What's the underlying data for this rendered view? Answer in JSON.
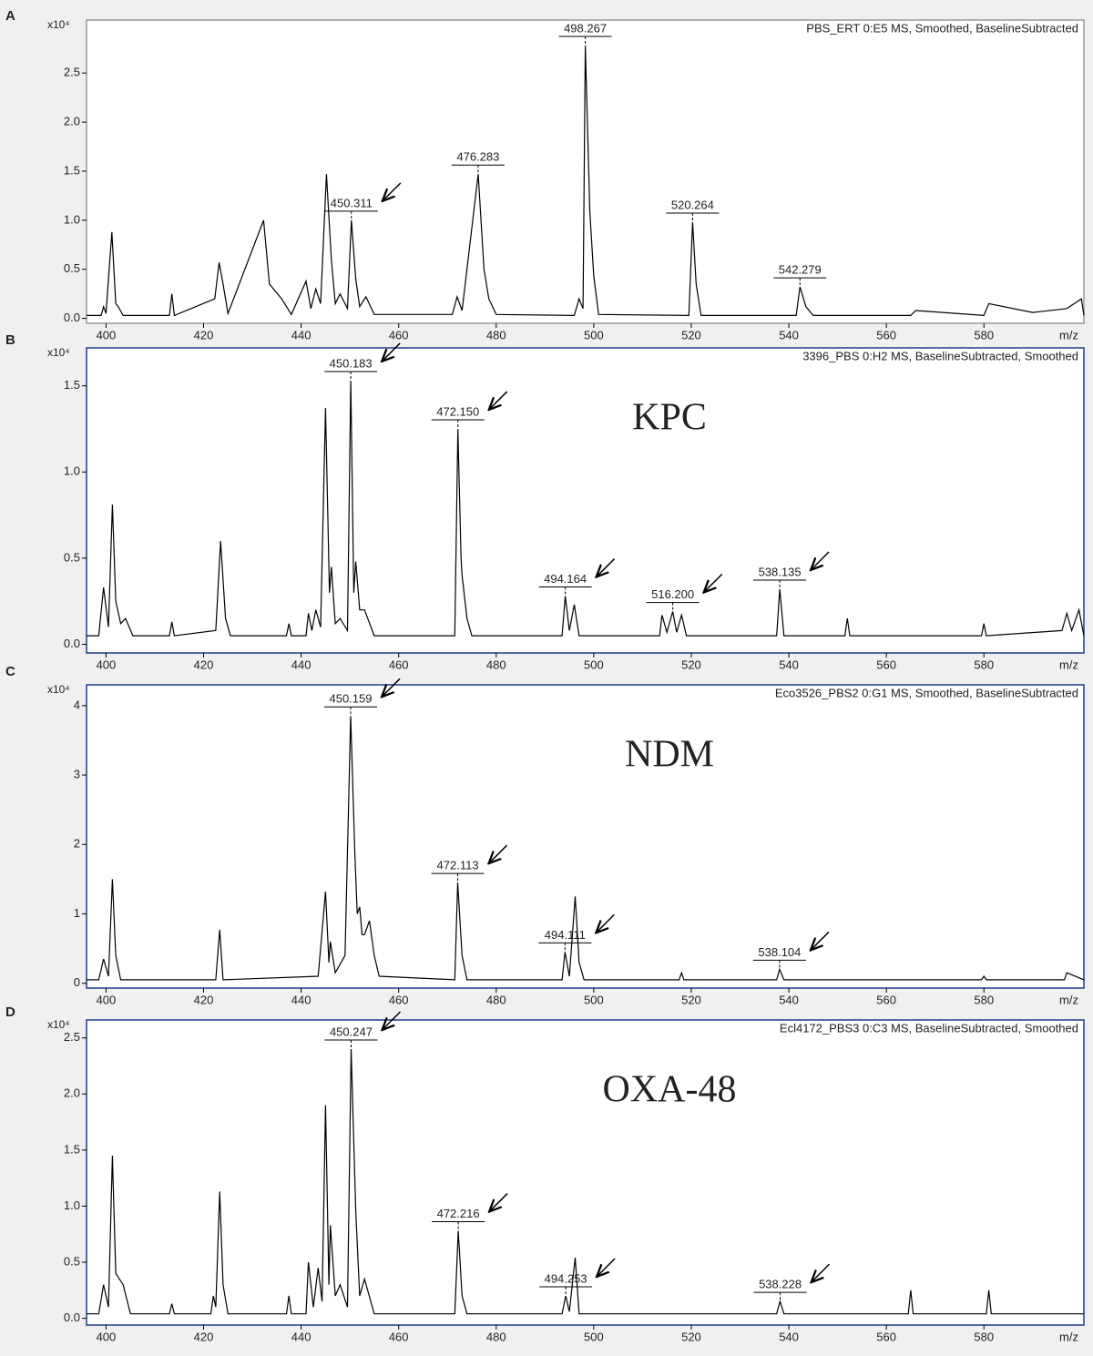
{
  "chart_data": [
    {
      "type": "line",
      "panel": "A",
      "title": "PBS_ERT 0:E5 MS, Smoothed, BaselineSubtracted",
      "y_multiplier": "x10⁴",
      "xlabel": "m/z",
      "color": "#000000",
      "frame_color": "#999999",
      "x": [
        396,
        399,
        399.5,
        400,
        401.2,
        402,
        402.5,
        403.5,
        413,
        413.5,
        414,
        422.3,
        423.2,
        424,
        425,
        432.3,
        433.5,
        436,
        438,
        441,
        442,
        443,
        444,
        445.2,
        446.2,
        447,
        448,
        449.5,
        450.3,
        451.2,
        452,
        453.3,
        455,
        471,
        472,
        473,
        476.3,
        477.5,
        478.5,
        480,
        496,
        497,
        497.8,
        498.27,
        499.2,
        500,
        501,
        519.5,
        520.26,
        521,
        522,
        541.5,
        542.28,
        543.5,
        545,
        565,
        566,
        580,
        581,
        590,
        597,
        600,
        600.5
      ],
      "values": [
        0.03,
        0.03,
        0.12,
        0.05,
        0.88,
        0.15,
        0.12,
        0.03,
        0.03,
        0.25,
        0.03,
        0.2,
        0.57,
        0.35,
        0.05,
        1.0,
        0.35,
        0.2,
        0.04,
        0.38,
        0.1,
        0.3,
        0.15,
        1.47,
        0.6,
        0.15,
        0.25,
        0.1,
        1.0,
        0.4,
        0.12,
        0.22,
        0.04,
        0.04,
        0.22,
        0.08,
        1.47,
        0.5,
        0.2,
        0.04,
        0.03,
        0.2,
        0.1,
        2.78,
        1.08,
        0.43,
        0.04,
        0.03,
        0.98,
        0.35,
        0.03,
        0.03,
        0.32,
        0.12,
        0.03,
        0.03,
        0.08,
        0.03,
        0.15,
        0.06,
        0.1,
        0.2,
        0.03
      ],
      "xlim": [
        396,
        600.5
      ],
      "ylim": [
        -0.05,
        3.04
      ],
      "xticks": [
        400,
        420,
        440,
        460,
        480,
        500,
        520,
        540,
        560,
        580
      ],
      "yticks": [
        {
          "value": 0,
          "label": "0.0"
        },
        0.5,
        {
          "value": 1,
          "label": "1.0"
        },
        1.5,
        {
          "value": 2,
          "label": "2.0"
        },
        2.5
      ],
      "peak_labels": [
        {
          "x": 450.311,
          "y": 1.0,
          "arrow": true
        },
        {
          "x": 476.283,
          "y": 1.47,
          "arrow": false
        },
        {
          "x": 498.267,
          "y": 2.78,
          "arrow": false
        },
        {
          "x": 520.264,
          "y": 0.98,
          "arrow": false
        },
        {
          "x": 542.279,
          "y": 0.32,
          "arrow": false
        }
      ]
    },
    {
      "type": "line",
      "panel": "B",
      "title": "3396_PBS 0:H2 MS, BaselineSubtracted, Smoothed",
      "annotation": "KPC",
      "y_multiplier": "x10⁴",
      "xlabel": "m/z",
      "color": "#000000",
      "frame_color": "#1f3a8a",
      "x": [
        396,
        398.5,
        399.5,
        400.5,
        401.3,
        402,
        403,
        404,
        405.5,
        413,
        413.5,
        414,
        422.5,
        423.5,
        424.5,
        425.5,
        437,
        437.5,
        438,
        441,
        441.5,
        442.2,
        443,
        444,
        445,
        445.8,
        446.2,
        447,
        448,
        449.5,
        450.18,
        450.8,
        451.2,
        452,
        453,
        455,
        471.5,
        472.15,
        472.8,
        473,
        474,
        475,
        493.5,
        494.16,
        495,
        496,
        497,
        513.5,
        514,
        515,
        516.2,
        517,
        518,
        519,
        537.5,
        538.14,
        539,
        551.5,
        552,
        552.5,
        579.5,
        580,
        580.5,
        596,
        597,
        598,
        599.5,
        600.5
      ],
      "values": [
        0.05,
        0.05,
        0.33,
        0.1,
        0.81,
        0.25,
        0.12,
        0.15,
        0.05,
        0.05,
        0.13,
        0.05,
        0.08,
        0.6,
        0.15,
        0.05,
        0.05,
        0.12,
        0.05,
        0.05,
        0.18,
        0.08,
        0.2,
        0.1,
        1.37,
        0.3,
        0.45,
        0.12,
        0.15,
        0.08,
        1.53,
        0.3,
        0.48,
        0.2,
        0.2,
        0.05,
        0.05,
        1.25,
        0.5,
        0.4,
        0.15,
        0.05,
        0.05,
        0.28,
        0.08,
        0.23,
        0.05,
        0.05,
        0.17,
        0.07,
        0.19,
        0.07,
        0.17,
        0.05,
        0.05,
        0.32,
        0.05,
        0.05,
        0.15,
        0.05,
        0.05,
        0.12,
        0.05,
        0.08,
        0.18,
        0.08,
        0.2,
        0.05
      ],
      "xlim": [
        396,
        600.5
      ],
      "ylim": [
        -0.05,
        1.72
      ],
      "xticks": [
        400,
        420,
        440,
        460,
        480,
        500,
        520,
        540,
        560,
        580
      ],
      "yticks": [
        {
          "value": 0,
          "label": "0.0"
        },
        0.5,
        {
          "value": 1,
          "label": "1.0"
        },
        1.5
      ],
      "peak_labels": [
        {
          "x": 450.183,
          "y": 1.53,
          "arrow": true
        },
        {
          "x": 472.15,
          "y": 1.25,
          "arrow": true
        },
        {
          "x": 494.164,
          "y": 0.28,
          "arrow": true
        },
        {
          "x": 516.2,
          "y": 0.19,
          "arrow": true
        },
        {
          "x": 538.135,
          "y": 0.32,
          "arrow": true
        }
      ],
      "peak_label_texts": [
        "450.183",
        "472.150",
        "494.164",
        "516.200",
        "538.135"
      ]
    },
    {
      "type": "line",
      "panel": "C",
      "title": "Eco3526_PBS2 0:G1 MS, Smoothed, BaselineSubtracted",
      "annotation": "NDM",
      "y_multiplier": "x10⁴",
      "xlabel": "m/z",
      "color": "#000000",
      "frame_color": "#1f3a8a",
      "x": [
        396,
        398.5,
        399.5,
        400.5,
        401.3,
        402,
        403,
        422.5,
        423.3,
        424,
        443.5,
        445,
        445.7,
        446,
        447,
        449,
        450.16,
        451,
        451.5,
        452,
        452.5,
        453,
        454,
        455,
        456,
        471.5,
        472.11,
        473,
        474,
        493.5,
        494.11,
        495,
        496.2,
        497,
        498,
        517.5,
        518,
        518.5,
        537.5,
        538.1,
        539,
        579.5,
        580,
        580.5,
        596.5,
        597,
        600.5
      ],
      "values": [
        0.05,
        0.05,
        0.35,
        0.1,
        1.5,
        0.4,
        0.05,
        0.05,
        0.77,
        0.05,
        0.1,
        1.32,
        0.3,
        0.6,
        0.15,
        0.4,
        3.85,
        1.9,
        1.0,
        1.1,
        0.7,
        0.7,
        0.9,
        0.4,
        0.1,
        0.05,
        1.45,
        0.4,
        0.05,
        0.05,
        0.45,
        0.1,
        1.25,
        0.3,
        0.05,
        0.05,
        0.15,
        0.05,
        0.05,
        0.2,
        0.05,
        0.05,
        0.1,
        0.05,
        0.05,
        0.15,
        0.05
      ],
      "xlim": [
        396,
        600.5
      ],
      "ylim": [
        -0.07,
        4.3
      ],
      "xticks": [
        400,
        420,
        440,
        460,
        480,
        500,
        520,
        540,
        560,
        580
      ],
      "yticks": [
        0,
        1,
        2,
        3,
        4
      ],
      "peak_labels": [
        {
          "x": 450.159,
          "y": 3.85,
          "arrow": true
        },
        {
          "x": 472.113,
          "y": 1.45,
          "arrow": true
        },
        {
          "x": 494.111,
          "y": 0.45,
          "arrow": true
        },
        {
          "x": 538.104,
          "y": 0.2,
          "arrow": true
        }
      ]
    },
    {
      "type": "line",
      "panel": "D",
      "title": "Ecl4172_PBS3 0:C3 MS, BaselineSubtracted, Smoothed",
      "annotation": "OXA-48",
      "y_multiplier": "x10⁴",
      "xlabel": "m/z",
      "color": "#000000",
      "frame_color": "#1f3a8a",
      "x": [
        396,
        398.5,
        399.5,
        400.5,
        401.3,
        402,
        403.5,
        405,
        413,
        413.5,
        414,
        421.5,
        422,
        422.5,
        423.3,
        424,
        425,
        437,
        437.5,
        438,
        441,
        441.5,
        442.5,
        443.5,
        444.3,
        445,
        445.7,
        446,
        447,
        448,
        449.5,
        450.25,
        451.2,
        452,
        453,
        455,
        471.5,
        472.22,
        473,
        474,
        493.5,
        494.25,
        495,
        496.2,
        497,
        537.5,
        538.2,
        539,
        564.5,
        565,
        565.5,
        580.5,
        581,
        581.5,
        600.5
      ],
      "values": [
        0.04,
        0.04,
        0.3,
        0.1,
        1.45,
        0.4,
        0.3,
        0.04,
        0.04,
        0.13,
        0.04,
        0.04,
        0.2,
        0.1,
        1.13,
        0.3,
        0.04,
        0.04,
        0.2,
        0.04,
        0.04,
        0.5,
        0.1,
        0.45,
        0.15,
        1.9,
        0.3,
        0.83,
        0.2,
        0.3,
        0.1,
        2.4,
        0.95,
        0.2,
        0.35,
        0.04,
        0.04,
        0.78,
        0.2,
        0.04,
        0.04,
        0.2,
        0.06,
        0.54,
        0.04,
        0.04,
        0.15,
        0.04,
        0.04,
        0.25,
        0.04,
        0.04,
        0.25,
        0.04,
        0.04
      ],
      "xlim": [
        396,
        600.5
      ],
      "ylim": [
        -0.06,
        2.66
      ],
      "xticks": [
        400,
        420,
        440,
        460,
        480,
        500,
        520,
        540,
        560,
        580
      ],
      "yticks": [
        {
          "value": 0,
          "label": "0.0"
        },
        0.5,
        {
          "value": 1,
          "label": "1.0"
        },
        1.5,
        {
          "value": 2,
          "label": "2.0"
        },
        2.5
      ],
      "peak_labels": [
        {
          "x": 450.247,
          "y": 2.4,
          "arrow": true
        },
        {
          "x": 472.216,
          "y": 0.78,
          "arrow": true
        },
        {
          "x": 494.253,
          "y": 0.2,
          "arrow": true
        },
        {
          "x": 538.228,
          "y": 0.15,
          "arrow": true
        }
      ]
    }
  ]
}
